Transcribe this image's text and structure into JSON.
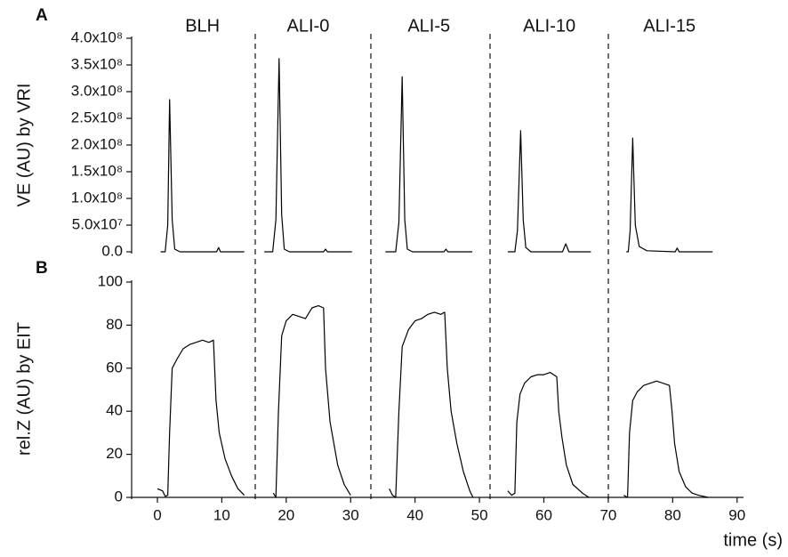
{
  "chart_data": [
    {
      "type": "line",
      "panel_label": "A",
      "ylabel": "VE (AU) by VRI",
      "color": "#000000",
      "xlim": [
        -4,
        91
      ],
      "ylim": [
        0,
        400000000
      ],
      "yticks": [
        {
          "value": 0,
          "label": "0.0"
        },
        {
          "value": 50000000,
          "label": "5.0x10⁷"
        },
        {
          "value": 100000000,
          "label": "1.0x10⁸"
        },
        {
          "value": 150000000,
          "label": "1.5x10⁸"
        },
        {
          "value": 200000000,
          "label": "2.0x10⁸"
        },
        {
          "value": 250000000,
          "label": "2.5x10⁸"
        },
        {
          "value": 300000000,
          "label": "3.0x10⁸"
        },
        {
          "value": 350000000,
          "label": "3.5x10⁸"
        },
        {
          "value": 400000000,
          "label": "4.0x10⁸"
        }
      ],
      "series": [
        {
          "name": "BLH",
          "x": [
            0.5,
            1.2,
            1.6,
            1.9,
            2.3,
            2.7,
            3.5,
            9.2,
            9.5,
            9.8,
            13.5
          ],
          "values": [
            0,
            0,
            50000000,
            285000000,
            60000000,
            5000000,
            0,
            0,
            8000000,
            0,
            0
          ]
        },
        {
          "name": "ALI-0",
          "x": [
            16.6,
            17.9,
            18.4,
            18.9,
            19.3,
            19.7,
            20.5,
            25.8,
            26.1,
            26.4,
            30.2
          ],
          "values": [
            0,
            0,
            60000000,
            362000000,
            70000000,
            5000000,
            0,
            0,
            5000000,
            0,
            0
          ]
        },
        {
          "name": "ALI-5",
          "x": [
            35.4,
            37.0,
            37.5,
            38.0,
            38.4,
            38.8,
            39.6,
            44.5,
            44.8,
            45.1,
            48.9
          ],
          "values": [
            0,
            0,
            55000000,
            328000000,
            60000000,
            5000000,
            0,
            0,
            5000000,
            0,
            0
          ]
        },
        {
          "name": "ALI-10",
          "x": [
            54.4,
            55.5,
            55.9,
            56.4,
            56.8,
            57.2,
            58.0,
            62.9,
            63.4,
            63.9,
            67.3
          ],
          "values": [
            0,
            0,
            40000000,
            227000000,
            60000000,
            8000000,
            0,
            0,
            15000000,
            0,
            0
          ]
        },
        {
          "name": "ALI-15",
          "x": [
            72.8,
            73.1,
            73.4,
            73.8,
            74.2,
            74.8,
            76.0,
            80.4,
            80.7,
            81.0,
            86.2
          ],
          "values": [
            0,
            0,
            40000000,
            213000000,
            50000000,
            10000000,
            2000000,
            0,
            7000000,
            0,
            0
          ]
        }
      ]
    },
    {
      "type": "line",
      "panel_label": "B",
      "ylabel": "rel.Z (AU) by EIT",
      "xlabel": "time (s)",
      "color": "#000000",
      "xlim": [
        -4,
        91
      ],
      "ylim": [
        0,
        100
      ],
      "xticks": [
        0,
        10,
        20,
        30,
        40,
        50,
        60,
        70,
        80,
        90
      ],
      "yticks": [
        0,
        20,
        40,
        60,
        80,
        100
      ],
      "series": [
        {
          "x": [
            0,
            0.8,
            1.2,
            1.6,
            1.9,
            2.3,
            3,
            4,
            5,
            6,
            7,
            8,
            8.7,
            9.1,
            9.6,
            10.5,
            11.5,
            12.5,
            13.5
          ],
          "values": [
            4,
            3,
            0.5,
            1,
            30,
            60,
            64,
            69,
            71,
            72,
            73,
            72,
            73,
            45,
            30,
            18,
            10,
            4,
            1
          ]
        },
        {
          "x": [
            18,
            18.4,
            18.8,
            19.3,
            20,
            21,
            22,
            23,
            24,
            25,
            25.8,
            26.1,
            26.8,
            28,
            29,
            30
          ],
          "values": [
            2,
            0,
            40,
            75,
            82,
            85,
            84,
            83,
            88,
            89,
            88,
            60,
            35,
            15,
            6,
            1
          ]
        },
        {
          "x": [
            36,
            36.5,
            37,
            37.5,
            38,
            39,
            40,
            41,
            42,
            43,
            44,
            44.6,
            45,
            45.6,
            46.5,
            47.5,
            48.5,
            49
          ],
          "values": [
            4,
            1,
            0,
            40,
            70,
            78,
            82,
            83,
            85,
            86,
            85,
            86,
            60,
            40,
            25,
            12,
            3,
            0
          ]
        },
        {
          "x": [
            54.4,
            55,
            55.5,
            55.8,
            56.3,
            57,
            58,
            59,
            60,
            61,
            62,
            62.3,
            62.8,
            63.5,
            64.5,
            66,
            67
          ],
          "values": [
            3,
            1,
            2,
            35,
            48,
            53,
            56,
            57,
            57,
            58,
            56,
            40,
            28,
            15,
            6,
            2,
            0
          ]
        },
        {
          "x": [
            72.4,
            73,
            73.3,
            73.8,
            74.5,
            75.5,
            76.5,
            77.5,
            78.5,
            79.5,
            79.9,
            80.3,
            81,
            82,
            83,
            84,
            85.5
          ],
          "values": [
            1,
            0,
            30,
            45,
            49,
            52,
            53,
            54,
            53,
            52,
            40,
            25,
            12,
            5,
            2,
            1,
            0
          ]
        }
      ]
    }
  ]
}
